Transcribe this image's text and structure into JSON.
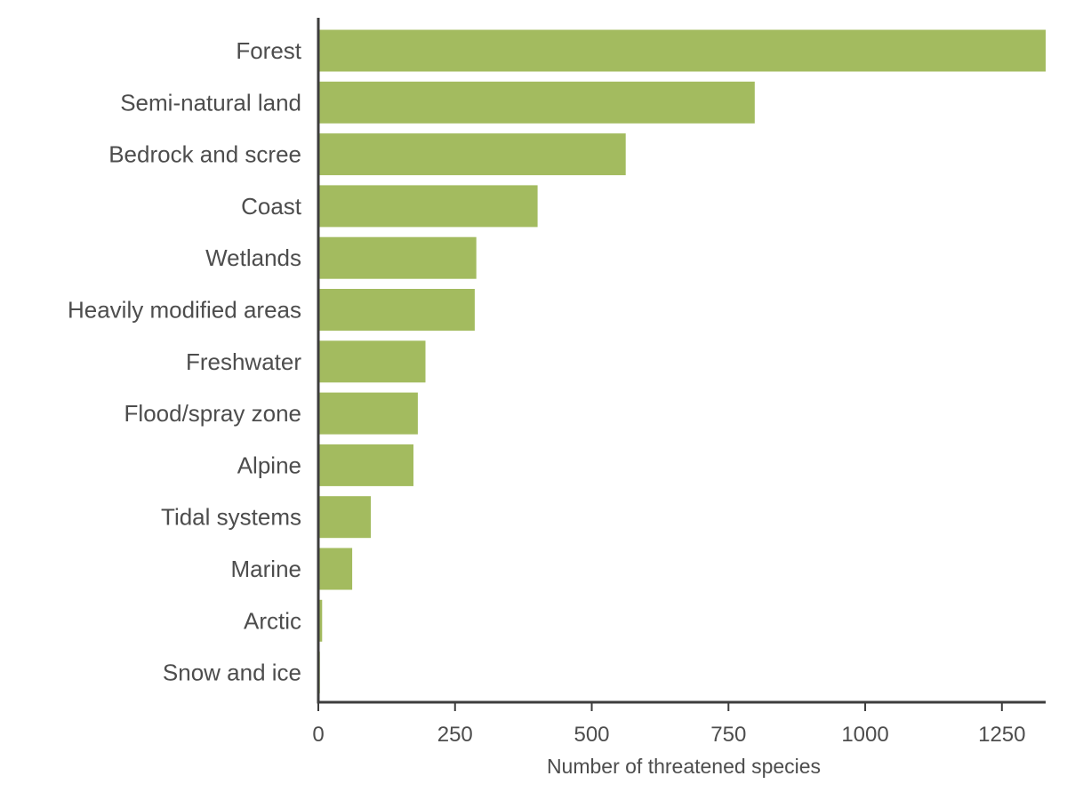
{
  "chart_data": {
    "type": "bar",
    "orientation": "horizontal",
    "title": "",
    "xlabel": "Number of threatened species",
    "ylabel": "",
    "categories": [
      "Forest",
      "Semi-natural land",
      "Bedrock and scree",
      "Coast",
      "Wetlands",
      "Heavily modified areas",
      "Freshwater",
      "Flood/spray zone",
      "Alpine",
      "Tidal systems",
      "Marine",
      "Arctic",
      "Snow and ice"
    ],
    "values": [
      1335,
      798,
      562,
      401,
      289,
      286,
      196,
      182,
      174,
      96,
      62,
      7,
      3
    ],
    "xlim": [
      0,
      1330
    ],
    "xticks": [
      0,
      250,
      500,
      750,
      1000,
      1250
    ],
    "xtick_labels": [
      "0",
      "250",
      "500",
      "750",
      "1000",
      "1250"
    ],
    "bar_color": "#a3bb5f",
    "axis_color": "#3d3d3d",
    "text_color": "#4d4d4d",
    "grid": false,
    "legend": "none"
  }
}
